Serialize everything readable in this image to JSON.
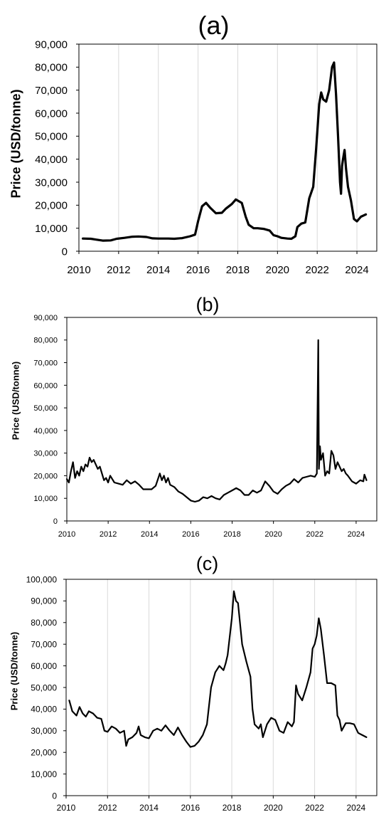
{
  "chart_data": [
    {
      "panel": "(a)",
      "type": "line",
      "title": "(a)",
      "xlabel": "",
      "ylabel": "Price (USD/tonne)",
      "xlim": [
        2010,
        2025
      ],
      "ylim": [
        0,
        90000
      ],
      "x_ticks": [
        2010,
        2012,
        2014,
        2016,
        2018,
        2020,
        2022,
        2024
      ],
      "y_ticks": [
        0,
        10000,
        20000,
        30000,
        40000,
        50000,
        60000,
        70000,
        80000,
        90000
      ],
      "x_tick_labels": [
        "2010",
        "2012",
        "2014",
        "2016",
        "2018",
        "2020",
        "2022",
        "2024"
      ],
      "y_tick_labels": [
        "0",
        "10,000",
        "20,000",
        "30,000",
        "40,000",
        "50,000",
        "60,000",
        "70,000",
        "80,000",
        "90,000"
      ],
      "grid": "vertical",
      "line_width": "thick",
      "series": [
        {
          "x": [
            2010.2,
            2010.6,
            2010.9,
            2011.2,
            2011.6,
            2011.9,
            2012.3,
            2012.7,
            2013.0,
            2013.4,
            2013.7,
            2014.0,
            2014.5,
            2014.8,
            2015.2,
            2015.6,
            2015.85,
            2016.0,
            2016.2,
            2016.4,
            2016.6,
            2016.9,
            2017.2,
            2017.4,
            2017.7,
            2017.9,
            2018.0,
            2018.2,
            2018.4,
            2018.55,
            2018.8,
            2019.0,
            2019.3,
            2019.6,
            2019.8,
            2020.0,
            2020.2,
            2020.5,
            2020.7,
            2020.9,
            2021.0,
            2021.2,
            2021.4,
            2021.6,
            2021.8,
            2021.95,
            2022.1,
            2022.2,
            2022.3,
            2022.45,
            2022.6,
            2022.75,
            2022.85,
            2022.95,
            2023.05,
            2023.15,
            2023.2,
            2023.25,
            2023.3,
            2023.38,
            2023.45,
            2023.55,
            2023.7,
            2023.85,
            2024.0,
            2024.2,
            2024.45
          ],
          "y": [
            5500,
            5400,
            5000,
            4600,
            4700,
            5400,
            5800,
            6300,
            6400,
            6200,
            5600,
            5500,
            5500,
            5400,
            5700,
            6500,
            7200,
            13000,
            19500,
            21000,
            19000,
            16500,
            16700,
            18500,
            20500,
            22500,
            22000,
            21000,
            15000,
            11500,
            10000,
            10000,
            9700,
            9000,
            7000,
            6500,
            5800,
            5500,
            5400,
            6500,
            10500,
            12000,
            12500,
            23000,
            28000,
            45000,
            64000,
            69000,
            66000,
            65000,
            70000,
            80000,
            82000,
            68000,
            50000,
            30000,
            25000,
            37000,
            40000,
            44000,
            36000,
            28000,
            22000,
            14000,
            13000,
            15000,
            16000
          ]
        }
      ]
    },
    {
      "panel": "(b)",
      "type": "line",
      "title": "(b)",
      "xlabel": "",
      "ylabel": "Price (USD/tonne)",
      "xlim": [
        2010,
        2025
      ],
      "ylim": [
        0,
        90000
      ],
      "x_ticks": [
        2010,
        2012,
        2014,
        2016,
        2018,
        2020,
        2022,
        2024
      ],
      "y_ticks": [
        0,
        10000,
        20000,
        30000,
        40000,
        50000,
        60000,
        70000,
        80000,
        90000
      ],
      "x_tick_labels": [
        "2010",
        "2012",
        "2014",
        "2016",
        "2018",
        "2020",
        "2022",
        "2024"
      ],
      "y_tick_labels": [
        "0",
        "10,000",
        "20,000",
        "30,000",
        "40,000",
        "50,000",
        "60,000",
        "70,000",
        "80,000",
        "90,000"
      ],
      "grid": "none",
      "line_width": "medium",
      "series": [
        {
          "x": [
            2010.0,
            2010.1,
            2010.2,
            2010.3,
            2010.4,
            2010.5,
            2010.6,
            2010.7,
            2010.8,
            2010.9,
            2011.0,
            2011.1,
            2011.2,
            2011.3,
            2011.4,
            2011.5,
            2011.6,
            2011.7,
            2011.8,
            2011.9,
            2012.0,
            2012.1,
            2012.3,
            2012.5,
            2012.7,
            2012.9,
            2013.1,
            2013.3,
            2013.5,
            2013.7,
            2013.9,
            2014.1,
            2014.3,
            2014.5,
            2014.6,
            2014.7,
            2014.8,
            2014.9,
            2015.0,
            2015.2,
            2015.4,
            2015.6,
            2015.8,
            2016.0,
            2016.2,
            2016.4,
            2016.6,
            2016.8,
            2017.0,
            2017.2,
            2017.4,
            2017.6,
            2017.8,
            2018.0,
            2018.2,
            2018.4,
            2018.6,
            2018.8,
            2019.0,
            2019.2,
            2019.4,
            2019.6,
            2019.8,
            2020.0,
            2020.2,
            2020.4,
            2020.6,
            2020.8,
            2021.0,
            2021.2,
            2021.4,
            2021.6,
            2021.8,
            2022.0,
            2022.1,
            2022.17,
            2022.2,
            2022.25,
            2022.3,
            2022.4,
            2022.5,
            2022.6,
            2022.7,
            2022.8,
            2022.9,
            2023.0,
            2023.1,
            2023.2,
            2023.3,
            2023.4,
            2023.5,
            2023.6,
            2023.8,
            2024.0,
            2024.2,
            2024.35,
            2024.4,
            2024.5
          ],
          "y": [
            18500,
            17000,
            22000,
            26000,
            19000,
            22000,
            20000,
            24000,
            22000,
            25000,
            24000,
            28000,
            26000,
            27000,
            25000,
            23000,
            24000,
            21000,
            18000,
            19000,
            17000,
            20000,
            17000,
            16500,
            16000,
            18000,
            16500,
            17500,
            16000,
            14000,
            14000,
            14000,
            15500,
            21000,
            18000,
            20000,
            17000,
            19000,
            16000,
            15000,
            13000,
            12000,
            10500,
            9000,
            8500,
            9000,
            10500,
            10000,
            11000,
            10000,
            9500,
            11500,
            12500,
            13500,
            14500,
            13500,
            11500,
            11500,
            13500,
            12500,
            13500,
            17500,
            15500,
            13000,
            12000,
            14000,
            15500,
            16500,
            18500,
            17000,
            19000,
            19500,
            20000,
            19500,
            21000,
            80000,
            23000,
            33000,
            27000,
            30000,
            20000,
            22000,
            21000,
            31000,
            29000,
            23000,
            26000,
            24000,
            22000,
            23000,
            21000,
            20000,
            17500,
            16500,
            18000,
            17500,
            20500,
            18000
          ]
        }
      ]
    },
    {
      "panel": "(c)",
      "type": "line",
      "title": "(c)",
      "xlabel": "",
      "ylabel": "Price (USD/tonne)",
      "xlim": [
        2010,
        2025
      ],
      "ylim": [
        0,
        100000
      ],
      "x_ticks": [
        2010,
        2012,
        2014,
        2016,
        2018,
        2020,
        2022,
        2024
      ],
      "y_ticks": [
        0,
        10000,
        20000,
        30000,
        40000,
        50000,
        60000,
        70000,
        80000,
        90000,
        100000
      ],
      "x_tick_labels": [
        "2010",
        "2012",
        "2014",
        "2016",
        "2018",
        "2020",
        "2022",
        "2024"
      ],
      "y_tick_labels": [
        "0",
        "10,000",
        "20,000",
        "30,000",
        "40,000",
        "50,000",
        "60,000",
        "70,000",
        "80,000",
        "90,000",
        "100,000"
      ],
      "grid": "vertical",
      "line_width": "medium",
      "series": [
        {
          "x": [
            2010.15,
            2010.3,
            2010.5,
            2010.65,
            2010.8,
            2010.95,
            2011.1,
            2011.3,
            2011.5,
            2011.7,
            2011.85,
            2012.0,
            2012.2,
            2012.4,
            2012.6,
            2012.8,
            2012.9,
            2013.0,
            2013.2,
            2013.4,
            2013.5,
            2013.6,
            2013.8,
            2014.0,
            2014.2,
            2014.4,
            2014.6,
            2014.8,
            2015.0,
            2015.2,
            2015.4,
            2015.6,
            2015.8,
            2016.0,
            2016.2,
            2016.4,
            2016.6,
            2016.8,
            2017.0,
            2017.2,
            2017.4,
            2017.6,
            2017.7,
            2017.8,
            2018.0,
            2018.1,
            2018.2,
            2018.3,
            2018.5,
            2018.7,
            2018.9,
            2019.0,
            2019.1,
            2019.3,
            2019.4,
            2019.5,
            2019.7,
            2019.9,
            2020.1,
            2020.3,
            2020.5,
            2020.7,
            2020.9,
            2021.0,
            2021.1,
            2021.2,
            2021.4,
            2021.6,
            2021.8,
            2021.9,
            2022.0,
            2022.1,
            2022.2,
            2022.3,
            2022.45,
            2022.6,
            2022.8,
            2023.0,
            2023.1,
            2023.2,
            2023.3,
            2023.5,
            2023.7,
            2023.9,
            2024.1,
            2024.3,
            2024.5
          ],
          "y": [
            44000,
            39000,
            37000,
            41000,
            38000,
            36500,
            39000,
            38000,
            36000,
            35500,
            30000,
            29500,
            32000,
            31000,
            29000,
            30000,
            23000,
            26000,
            27000,
            29000,
            32000,
            28000,
            27000,
            26500,
            30000,
            31000,
            30000,
            32500,
            30000,
            28000,
            31500,
            28000,
            25000,
            22500,
            23000,
            25000,
            28000,
            33000,
            50000,
            57000,
            60000,
            58000,
            61000,
            65000,
            82000,
            94500,
            90000,
            89000,
            70000,
            62000,
            55000,
            40000,
            33000,
            31000,
            33000,
            27000,
            33000,
            36000,
            35000,
            30000,
            29000,
            34000,
            32000,
            34000,
            51000,
            47000,
            44000,
            50000,
            57000,
            68000,
            70000,
            74000,
            82000,
            77000,
            65000,
            52000,
            52000,
            51000,
            37000,
            35000,
            30000,
            33500,
            33500,
            33000,
            29000,
            28000,
            27000
          ]
        }
      ]
    }
  ]
}
